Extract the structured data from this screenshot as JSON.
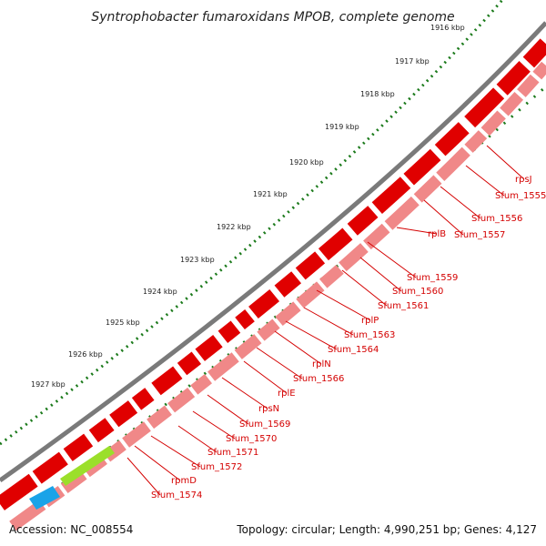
{
  "title": "Syntrophobacter fumaroxidans MPOB, complete genome",
  "accession": "Accession: NC_008554",
  "summary": "Topology: circular; Length: 4,990,251 bp; Genes: 4,127",
  "ticks": [
    "1916 kbp",
    "1917 kbp",
    "1918 kbp",
    "1919 kbp",
    "1920 kbp",
    "1921 kbp",
    "1922 kbp",
    "1923 kbp",
    "1924 kbp",
    "1925 kbp",
    "1926 kbp",
    "1927 kbp"
  ],
  "genes": [
    "rpsJ",
    "Sfum_1555",
    "Sfum_1556",
    "Sfum_1557",
    "rplB",
    "Sfum_1559",
    "Sfum_1560",
    "Sfum_1561",
    "rplP",
    "Sfum_1563",
    "Sfum_1564",
    "rplN",
    "Sfum_1566",
    "rplE",
    "rpsN",
    "Sfum_1569",
    "Sfum_1570",
    "Sfum_1571",
    "Sfum_1572",
    "rpmD",
    "Sfum_1574"
  ],
  "colors": {
    "cds_forward": "#e00000",
    "cds_reverse": "#f08888",
    "highlight_green": "#9bdf2a",
    "highlight_blue": "#1aa3e8",
    "backbone": "#7a7a7a",
    "gc_dots": "#1b7a1b",
    "label": "#d40000"
  }
}
